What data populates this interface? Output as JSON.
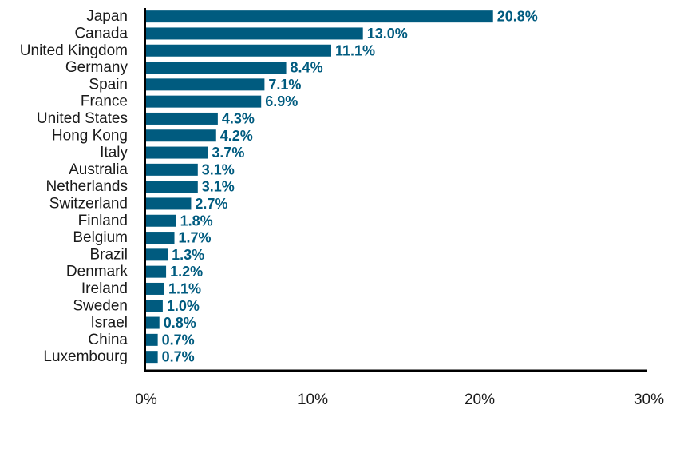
{
  "chart_data": {
    "type": "bar",
    "orientation": "horizontal",
    "categories": [
      "Japan",
      "Canada",
      "United Kingdom",
      "Germany",
      "Spain",
      "France",
      "United States",
      "Hong Kong",
      "Italy",
      "Australia",
      "Netherlands",
      "Switzerland",
      "Finland",
      "Belgium",
      "Brazil",
      "Denmark",
      "Ireland",
      "Sweden",
      "Israel",
      "China",
      "Luxembourg"
    ],
    "values": [
      20.8,
      13.0,
      11.1,
      8.4,
      7.1,
      6.9,
      4.3,
      4.2,
      3.7,
      3.1,
      3.1,
      2.7,
      1.8,
      1.7,
      1.3,
      1.2,
      1.1,
      1.0,
      0.8,
      0.7,
      0.7
    ],
    "value_labels": [
      "20.8%",
      "13.0%",
      "11.1%",
      "8.4%",
      "7.1%",
      "6.9%",
      "4.3%",
      "4.2%",
      "3.7%",
      "3.1%",
      "3.1%",
      "2.7%",
      "1.8%",
      "1.7%",
      "1.3%",
      "1.2%",
      "1.1%",
      "1.0%",
      "0.8%",
      "0.7%",
      "0.7%"
    ],
    "xlim": [
      0,
      30
    ],
    "xticks": [
      0,
      10,
      20,
      30
    ],
    "xtick_labels": [
      "0%",
      "10%",
      "20%",
      "30%"
    ],
    "grid": false,
    "colors": {
      "bar": "#005b7f",
      "value_label": "#005b7f",
      "axis": "#000000"
    }
  }
}
